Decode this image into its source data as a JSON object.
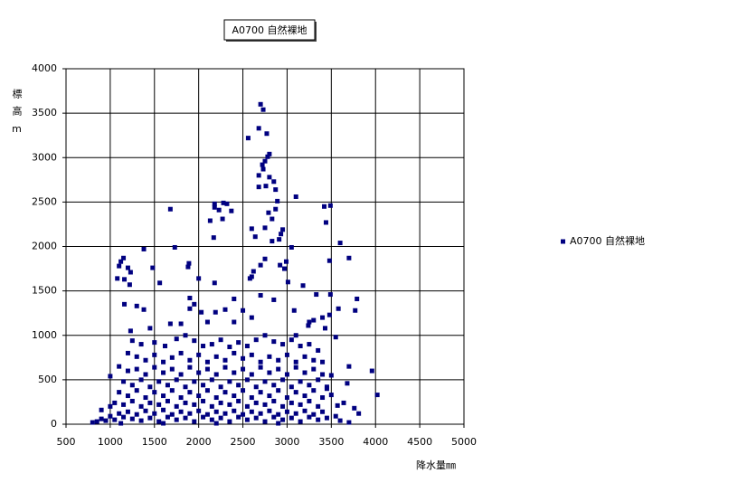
{
  "chart_data": {
    "type": "scatter",
    "title": "A0700 自然裸地",
    "x_label": "降水量㎜",
    "y_label": "標高m",
    "xlim": [
      500,
      5000
    ],
    "xticks": [
      500,
      1000,
      1500,
      2000,
      2500,
      3000,
      3500,
      4000,
      4500,
      5000
    ],
    "ylim": [
      0,
      4000
    ],
    "yticks": [
      0,
      500,
      1000,
      1500,
      2000,
      2500,
      3000,
      3500,
      4000
    ],
    "grid": true,
    "legend": "right",
    "series": [
      {
        "name": "A0700 自然裸地",
        "color": "#000080",
        "x": [
          2700,
          2730,
          2800,
          2780,
          2680,
          2770,
          2560,
          2750,
          2720,
          2730,
          2680,
          2800,
          2850,
          2760,
          2680,
          2870,
          3100,
          2180,
          2280,
          2320,
          2230,
          2180,
          2370,
          2130,
          2270,
          1680,
          3490,
          3420,
          3440,
          2830,
          2790,
          2870,
          2890,
          2750,
          2600,
          2640,
          2950,
          2930,
          2910,
          2830,
          2170,
          1730,
          1380,
          3600,
          3700,
          3480,
          1150,
          1120,
          1100,
          1200,
          1230,
          1480,
          1890,
          1880,
          2000,
          1080,
          1160,
          1220,
          1560,
          2180,
          2600,
          2620,
          2580,
          2700,
          2750,
          2920,
          2970,
          2990,
          3050,
          3010,
          3180,
          3330,
          3490,
          3790,
          3770,
          3580,
          3480,
          3400,
          3300,
          3240,
          3080,
          2850,
          2700,
          2500,
          2400,
          2300,
          2190,
          1950,
          1900,
          1900,
          2030,
          1380,
          1300,
          1160,
          1230,
          1450,
          1680,
          1800,
          2100,
          2400,
          2600,
          3100,
          3250,
          3430,
          3550,
          3760,
          3810,
          3960,
          4020,
          3700,
          3680,
          3640,
          3570,
          3550,
          3450,
          3500,
          3400,
          1000,
          1250,
          1350,
          1500,
          1620,
          1750,
          1850,
          1950,
          2050,
          2150,
          2250,
          2350,
          2450,
          2550,
          2650,
          2750,
          2850,
          2950,
          3050,
          3150,
          3250,
          3350,
          1200,
          1300,
          1400,
          1500,
          1600,
          1700,
          1800,
          1900,
          2000,
          2100,
          2200,
          2300,
          2400,
          2500,
          2600,
          2700,
          2800,
          2900,
          3000,
          3100,
          3200,
          3300,
          1100,
          1200,
          1300,
          1400,
          1500,
          1600,
          1700,
          1800,
          1900,
          2000,
          2100,
          2200,
          2300,
          2400,
          2500,
          2600,
          2700,
          2800,
          2900,
          3000,
          3100,
          3200,
          3300,
          3400,
          1150,
          1250,
          1350,
          1450,
          1550,
          1650,
          1750,
          1850,
          1950,
          2050,
          2150,
          2250,
          2350,
          2450,
          2550,
          2650,
          2750,
          2850,
          2950,
          3050,
          3150,
          3250,
          3350,
          3450,
          1100,
          1200,
          1300,
          1400,
          1500,
          1600,
          1700,
          1800,
          1900,
          2000,
          2100,
          2200,
          2300,
          2400,
          2500,
          2600,
          2700,
          2800,
          2900,
          3000,
          3100,
          3200,
          3300,
          3400,
          3500,
          900,
          1000,
          1050,
          1150,
          1250,
          1350,
          1450,
          1550,
          1650,
          1750,
          1850,
          1950,
          2050,
          2150,
          2250,
          2350,
          2450,
          2550,
          2650,
          2750,
          2850,
          2950,
          3050,
          3150,
          3250,
          3350,
          800,
          850,
          900,
          950,
          1000,
          1050,
          1100,
          1150,
          1200,
          1250,
          1300,
          1350,
          1400,
          1450,
          1500,
          1550,
          1600,
          1650,
          1700,
          1750,
          1800,
          1850,
          1900,
          1950,
          2000,
          2050,
          2100,
          2150,
          2200,
          2250,
          2300,
          2350,
          2400,
          2450,
          2500,
          2550,
          2600,
          2650,
          2700,
          2750,
          2800,
          2850,
          2900,
          2950,
          3000,
          3050,
          3100,
          3150,
          3200,
          3250,
          3300,
          3350,
          3400,
          3450,
          3600,
          3700,
          1120,
          1600,
          2200,
          2900
        ],
        "values": [
          3600,
          3540,
          3040,
          3010,
          3330,
          3270,
          3220,
          2960,
          2920,
          2870,
          2800,
          2780,
          2730,
          2680,
          2670,
          2640,
          2560,
          2480,
          2490,
          2480,
          2410,
          2440,
          2400,
          2290,
          2310,
          2420,
          2460,
          2450,
          2270,
          2310,
          2380,
          2420,
          2510,
          2210,
          2200,
          2110,
          2190,
          2140,
          2080,
          2060,
          2100,
          1990,
          1970,
          2040,
          1870,
          1840,
          1870,
          1830,
          1780,
          1760,
          1710,
          1760,
          1810,
          1770,
          1640,
          1640,
          1630,
          1570,
          1590,
          1590,
          1660,
          1720,
          1640,
          1790,
          1860,
          1790,
          1750,
          1830,
          1990,
          1600,
          1560,
          1460,
          1460,
          1410,
          1280,
          1300,
          1230,
          1200,
          1170,
          1110,
          1280,
          1400,
          1450,
          1280,
          1410,
          1290,
          1260,
          1350,
          1420,
          1300,
          1260,
          1290,
          1330,
          1350,
          1050,
          1080,
          1130,
          1130,
          1150,
          1150,
          1200,
          1000,
          1150,
          1080,
          980,
          180,
          120,
          600,
          330,
          650,
          460,
          240,
          210,
          90,
          400,
          550,
          700,
          540,
          940,
          900,
          920,
          880,
          960,
          1000,
          940,
          880,
          900,
          950,
          870,
          920,
          880,
          950,
          1000,
          930,
          900,
          950,
          880,
          900,
          830,
          800,
          760,
          720,
          780,
          700,
          750,
          800,
          720,
          780,
          700,
          760,
          720,
          800,
          740,
          780,
          700,
          760,
          720,
          780,
          700,
          760,
          720,
          650,
          600,
          620,
          560,
          640,
          580,
          620,
          560,
          640,
          580,
          620,
          560,
          640,
          580,
          620,
          560,
          640,
          580,
          620,
          560,
          640,
          580,
          620,
          560,
          480,
          440,
          500,
          420,
          480,
          440,
          500,
          420,
          480,
          440,
          500,
          420,
          480,
          440,
          500,
          420,
          480,
          440,
          500,
          420,
          480,
          440,
          500,
          420,
          360,
          320,
          380,
          300,
          360,
          320,
          380,
          300,
          360,
          320,
          380,
          300,
          360,
          320,
          380,
          300,
          360,
          320,
          380,
          300,
          360,
          320,
          380,
          300,
          330,
          160,
          200,
          240,
          220,
          260,
          200,
          240,
          220,
          260,
          200,
          240,
          220,
          260,
          200,
          240,
          220,
          260,
          200,
          240,
          220,
          260,
          200,
          240,
          220,
          260,
          200,
          20,
          30,
          60,
          40,
          90,
          50,
          120,
          80,
          140,
          60,
          110,
          40,
          150,
          70,
          120,
          30,
          160,
          80,
          110,
          50,
          140,
          70,
          120,
          30,
          150,
          80,
          110,
          50,
          140,
          70,
          120,
          30,
          150,
          80,
          110,
          50,
          140,
          70,
          120,
          30,
          150,
          80,
          110,
          50,
          140,
          70,
          120,
          30,
          150,
          80,
          110,
          50,
          140,
          70,
          40,
          20,
          10,
          10,
          10,
          10
        ]
      }
    ]
  }
}
